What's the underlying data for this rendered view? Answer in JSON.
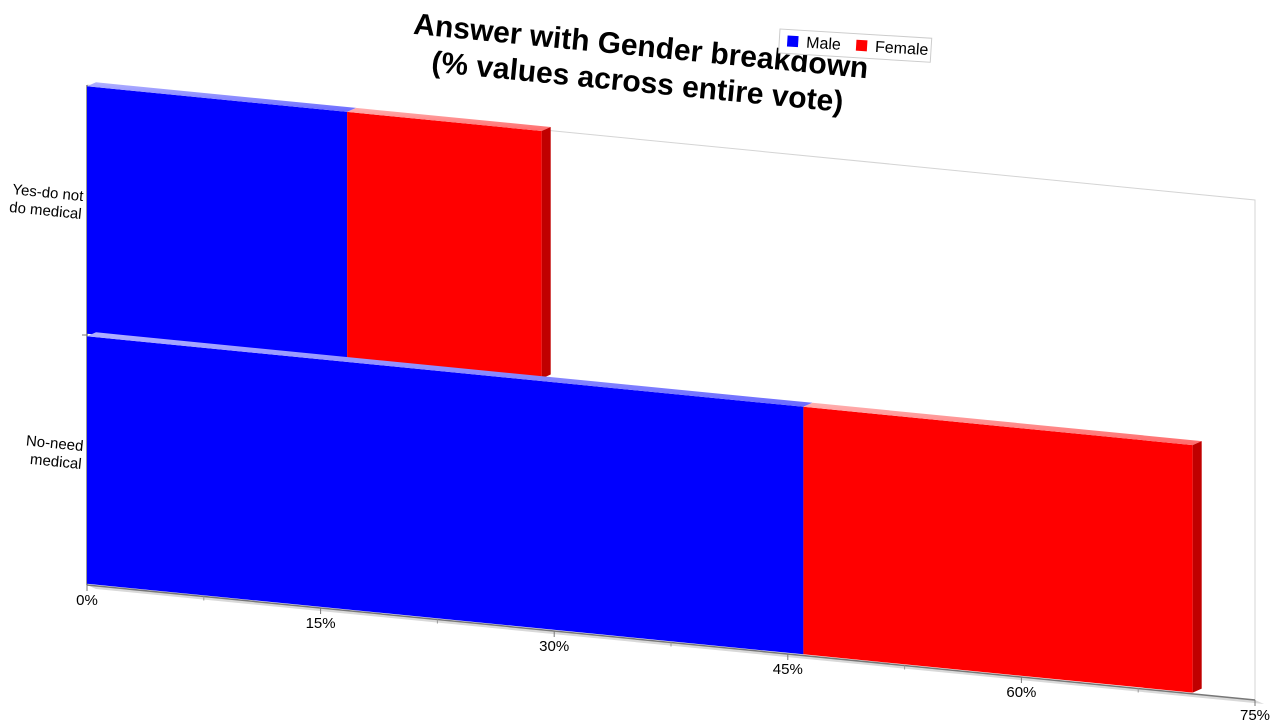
{
  "chart_data": {
    "type": "bar",
    "orientation": "horizontal",
    "stacked": true,
    "title": "Answer with Gender breakdown\n(% values across entire vote)",
    "categories": [
      "Yes-do not\ndo medical",
      "No-need\nmedical"
    ],
    "series": [
      {
        "name": "Male",
        "values": [
          16.7,
          46
        ],
        "color": "#0000ff"
      },
      {
        "name": "Female",
        "values": [
          12.5,
          25
        ],
        "color": "#ff0000"
      }
    ],
    "xlabel": "",
    "ylabel": "",
    "xlim": [
      0,
      75
    ],
    "x_ticks": [
      0,
      15,
      30,
      45,
      60,
      75
    ],
    "x_tick_labels": [
      "0%",
      "15%",
      "30%",
      "45%",
      "60%",
      "75%"
    ],
    "legend_position": "top-right",
    "grid": false
  }
}
